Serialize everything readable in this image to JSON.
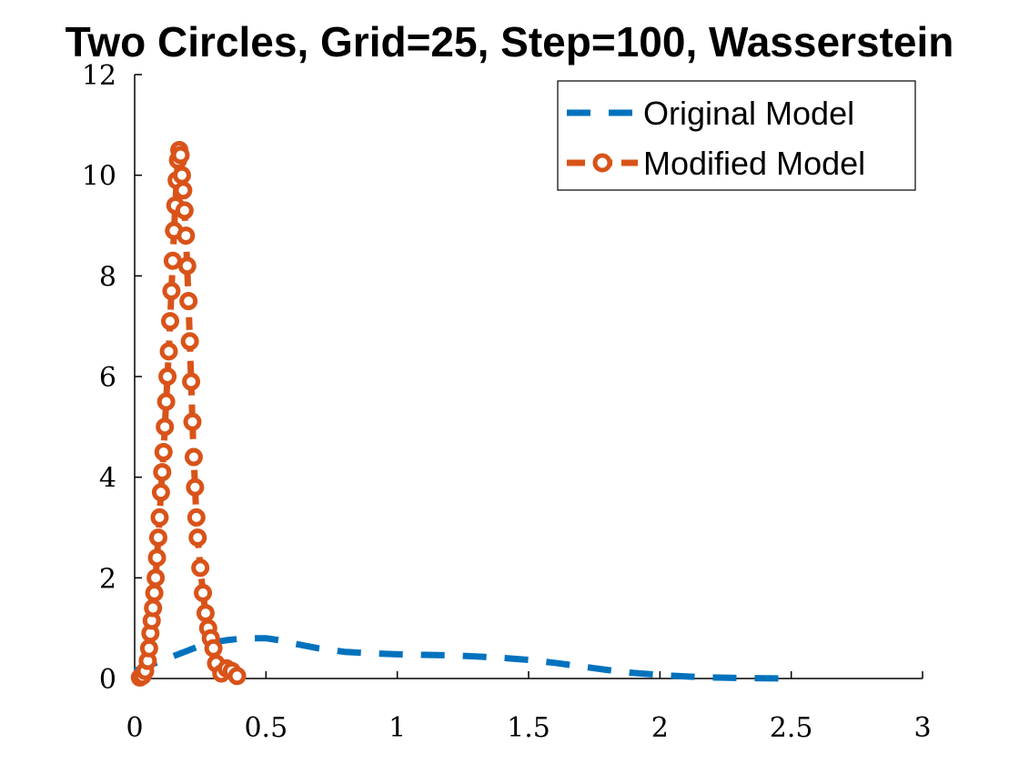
{
  "chart_data": {
    "type": "line",
    "title": "Two Circles, Grid=25, Step=100, Wasserstein",
    "xlabel": "",
    "ylabel": "",
    "xlim": [
      0,
      3
    ],
    "ylim": [
      0,
      12
    ],
    "xticks": [
      {
        "value": 0,
        "label": "0"
      },
      {
        "value": 0.5,
        "label": "0.5"
      },
      {
        "value": 1,
        "label": "1"
      },
      {
        "value": 1.5,
        "label": "1.5"
      },
      {
        "value": 2,
        "label": "2"
      },
      {
        "value": 2.5,
        "label": "2.5"
      },
      {
        "value": 3,
        "label": "3"
      }
    ],
    "yticks": [
      {
        "value": 0,
        "label": "0"
      },
      {
        "value": 2,
        "label": "2"
      },
      {
        "value": 4,
        "label": "4"
      },
      {
        "value": 6,
        "label": "6"
      },
      {
        "value": 8,
        "label": "8"
      },
      {
        "value": 10,
        "label": "10"
      },
      {
        "value": 12,
        "label": "12"
      }
    ],
    "grid": false,
    "legend_position": "top-right",
    "series": [
      {
        "name": "Original Model",
        "color": "#0072BD",
        "line_style": "dashed",
        "marker": "none",
        "x": [
          0.0,
          0.05,
          0.1,
          0.15,
          0.2,
          0.25,
          0.3,
          0.35,
          0.4,
          0.45,
          0.5,
          0.55,
          0.6,
          0.7,
          0.8,
          0.9,
          1.0,
          1.1,
          1.2,
          1.3,
          1.4,
          1.5,
          1.6,
          1.7,
          1.8,
          1.9,
          2.0,
          2.1,
          2.2,
          2.3,
          2.4,
          2.5
        ],
        "y": [
          0.15,
          0.25,
          0.35,
          0.45,
          0.55,
          0.65,
          0.72,
          0.76,
          0.79,
          0.8,
          0.8,
          0.76,
          0.7,
          0.6,
          0.53,
          0.5,
          0.48,
          0.47,
          0.46,
          0.44,
          0.41,
          0.37,
          0.31,
          0.24,
          0.17,
          0.11,
          0.07,
          0.04,
          0.02,
          0.01,
          0.005,
          0.0
        ]
      },
      {
        "name": "Modified Model",
        "color": "#D95319",
        "line_style": "dashed",
        "marker": "circle",
        "x": [
          0.02,
          0.03,
          0.04,
          0.05,
          0.055,
          0.06,
          0.065,
          0.07,
          0.075,
          0.08,
          0.085,
          0.09,
          0.095,
          0.1,
          0.105,
          0.11,
          0.115,
          0.12,
          0.125,
          0.13,
          0.135,
          0.14,
          0.145,
          0.15,
          0.155,
          0.16,
          0.165,
          0.17,
          0.175,
          0.18,
          0.185,
          0.19,
          0.195,
          0.2,
          0.205,
          0.21,
          0.215,
          0.22,
          0.225,
          0.23,
          0.235,
          0.24,
          0.25,
          0.26,
          0.27,
          0.28,
          0.29,
          0.3,
          0.31,
          0.33,
          0.35,
          0.37,
          0.39
        ],
        "y": [
          0.02,
          0.05,
          0.15,
          0.35,
          0.6,
          0.9,
          1.15,
          1.4,
          1.7,
          2.0,
          2.4,
          2.8,
          3.2,
          3.7,
          4.1,
          4.5,
          5.0,
          5.5,
          6.0,
          6.5,
          7.1,
          7.7,
          8.3,
          8.9,
          9.4,
          9.9,
          10.3,
          10.5,
          10.4,
          10.0,
          9.7,
          9.3,
          8.8,
          8.2,
          7.5,
          6.7,
          5.9,
          5.1,
          4.4,
          3.8,
          3.2,
          2.8,
          2.2,
          1.7,
          1.3,
          1.0,
          0.8,
          0.6,
          0.3,
          0.1,
          0.2,
          0.15,
          0.05
        ]
      }
    ]
  }
}
